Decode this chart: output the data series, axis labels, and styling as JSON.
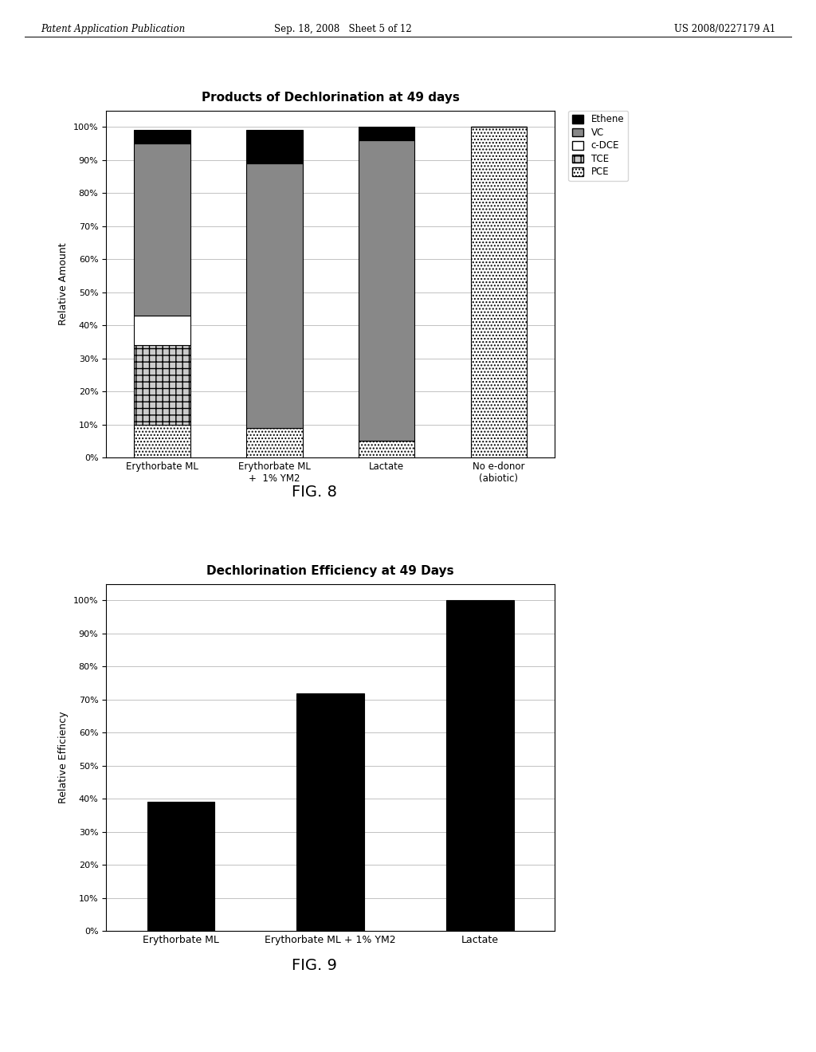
{
  "fig8_title": "Products of Dechlorination at 49 days",
  "fig8_ylabel": "Relative Amount",
  "fig8_categories": [
    "Erythorbate ML",
    "Erythorbate ML\n+  1% YM2",
    "Lactate",
    "No e-donor\n(abiotic)"
  ],
  "fig8_ethene": [
    0.04,
    0.1,
    0.04,
    0.0
  ],
  "fig8_vc": [
    0.52,
    0.8,
    0.91,
    0.0
  ],
  "fig8_cdce": [
    0.09,
    0.0,
    0.0,
    0.0
  ],
  "fig8_tce": [
    0.24,
    0.0,
    0.0,
    0.0
  ],
  "fig8_pce": [
    0.1,
    0.09,
    0.05,
    1.0
  ],
  "fig9_title": "Dechlorination Efficiency at 49 Days",
  "fig9_ylabel": "Relative Efficiency",
  "fig9_categories": [
    "Erythorbate ML",
    "Erythorbate ML + 1% YM2",
    "Lactate"
  ],
  "fig9_values": [
    0.39,
    0.72,
    1.0
  ],
  "header_left": "Patent Application Publication",
  "header_center": "Sep. 18, 2008   Sheet 5 of 12",
  "header_right": "US 2008/0227179 A1",
  "fig8_label": "FIG. 8",
  "fig9_label": "FIG. 9",
  "legend_labels": [
    "Ethene",
    "VC",
    "c-DCE",
    "TCE",
    "PCE"
  ]
}
